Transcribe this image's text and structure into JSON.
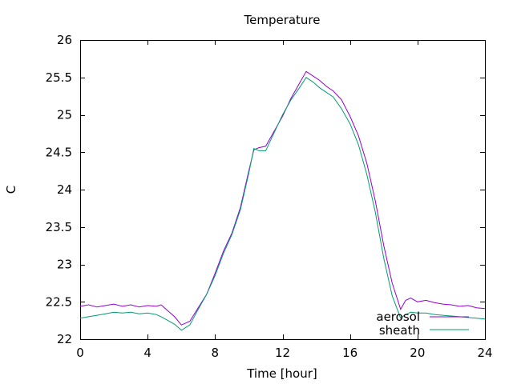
{
  "chart_data": {
    "type": "line",
    "title": "Temperature",
    "xlabel": "Time [hour]",
    "ylabel": "C",
    "xlim": [
      0,
      24
    ],
    "ylim": [
      22,
      26
    ],
    "xticks": [
      0,
      4,
      8,
      12,
      16,
      20,
      24
    ],
    "xtick_labels": [
      "0",
      "4",
      "8",
      "12",
      "16",
      "20",
      "24"
    ],
    "yticks": [
      22,
      22.5,
      23,
      23.5,
      24,
      24.5,
      25,
      25.5,
      26
    ],
    "ytick_labels": [
      "22",
      "22.5",
      "23",
      "23.5",
      "24",
      "24.5",
      "25",
      "25.5",
      "26"
    ],
    "grid": false,
    "legend_position": "bottom-right",
    "series": [
      {
        "name": "aerosol",
        "color": "#9400d3",
        "x": [
          0,
          0.5,
          1,
          1.5,
          2,
          2.5,
          3,
          3.5,
          4,
          4.5,
          4.8,
          5.2,
          5.6,
          6,
          6.5,
          7,
          7.5,
          8,
          8.5,
          9,
          9.5,
          10,
          10.3,
          10.6,
          11,
          11.5,
          12,
          12.5,
          13,
          13.4,
          13.8,
          14.2,
          14.6,
          15,
          15.5,
          16,
          16.5,
          17,
          17.5,
          18,
          18.5,
          19,
          19.3,
          19.6,
          20,
          20.5,
          21,
          21.5,
          22,
          22.5,
          23,
          23.5,
          24
        ],
        "y": [
          22.44,
          22.46,
          22.43,
          22.45,
          22.47,
          22.44,
          22.46,
          22.43,
          22.45,
          22.44,
          22.46,
          22.38,
          22.3,
          22.19,
          22.24,
          22.42,
          22.6,
          22.88,
          23.18,
          23.42,
          23.76,
          24.25,
          24.53,
          24.56,
          24.58,
          24.78,
          24.98,
          25.22,
          25.42,
          25.58,
          25.52,
          25.46,
          25.38,
          25.32,
          25.2,
          24.98,
          24.72,
          24.35,
          23.85,
          23.25,
          22.75,
          22.4,
          22.52,
          22.55,
          22.5,
          22.52,
          22.49,
          22.47,
          22.46,
          22.44,
          22.45,
          22.42,
          22.41
        ]
      },
      {
        "name": "sheath",
        "color": "#009e73",
        "x": [
          0,
          0.5,
          1,
          1.5,
          2,
          2.5,
          3,
          3.5,
          4,
          4.5,
          4.8,
          5.2,
          5.6,
          6,
          6.5,
          7,
          7.5,
          8,
          8.5,
          9,
          9.5,
          10,
          10.3,
          10.6,
          11,
          11.5,
          12,
          12.5,
          13,
          13.4,
          13.8,
          14.2,
          14.6,
          15,
          15.5,
          16,
          16.5,
          17,
          17.5,
          18,
          18.5,
          19,
          19.3,
          19.6,
          20,
          20.5,
          21,
          21.5,
          22,
          22.5,
          23,
          23.5,
          24
        ],
        "y": [
          22.28,
          22.3,
          22.32,
          22.34,
          22.36,
          22.35,
          22.36,
          22.34,
          22.35,
          22.33,
          22.3,
          22.25,
          22.2,
          22.12,
          22.19,
          22.4,
          22.6,
          22.85,
          23.15,
          23.4,
          23.73,
          24.22,
          24.55,
          24.52,
          24.52,
          24.76,
          25.0,
          25.2,
          25.36,
          25.5,
          25.44,
          25.36,
          25.3,
          25.24,
          25.08,
          24.88,
          24.6,
          24.2,
          23.7,
          23.08,
          22.58,
          22.28,
          22.33,
          22.36,
          22.35,
          22.35,
          22.33,
          22.32,
          22.31,
          22.3,
          22.29,
          22.28,
          22.27
        ]
      }
    ]
  }
}
